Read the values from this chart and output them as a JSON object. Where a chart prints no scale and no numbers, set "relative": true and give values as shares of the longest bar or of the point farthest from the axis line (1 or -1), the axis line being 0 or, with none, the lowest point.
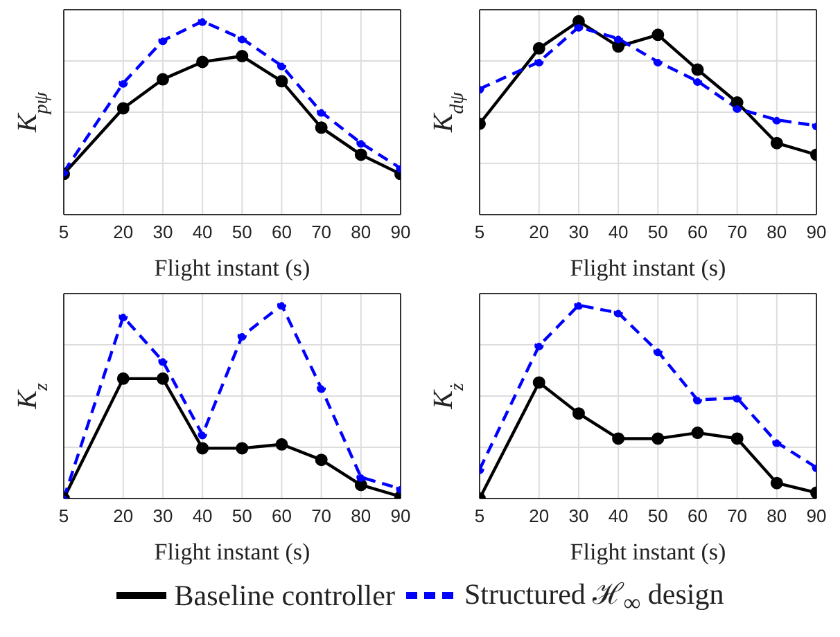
{
  "chart_data": [
    {
      "type": "line",
      "relative": true,
      "xlabel": "Flight instant (s)",
      "ylabel": "K$_{pψ}$",
      "x": [
        5,
        20,
        30,
        40,
        50,
        60,
        70,
        80,
        90
      ],
      "xlim": [
        5,
        90
      ],
      "xticks": [
        5,
        20,
        30,
        40,
        50,
        60,
        70,
        80,
        90
      ],
      "grid": true,
      "marker": "circle",
      "legend": "bottom",
      "series": [
        {
          "name": "Baseline controller",
          "color": "#000000",
          "line_style": "solid",
          "values": [
            0.21,
            0.55,
            0.7,
            0.79,
            0.82,
            0.69,
            0.45,
            0.31,
            0.21
          ]
        },
        {
          "name": "Structured ℋ$_{∞}$ design",
          "color": "#0000ff",
          "line_style": "dashed",
          "values": [
            0.22,
            0.68,
            0.9,
            1,
            0.91,
            0.77,
            0.53,
            0.37,
            0.24
          ]
        }
      ]
    },
    {
      "type": "line",
      "relative": true,
      "xlabel": "Flight instant (s)",
      "ylabel": "K$_{dψ}$",
      "x": [
        5,
        20,
        30,
        40,
        50,
        60,
        70,
        80,
        90
      ],
      "xlim": [
        5,
        90
      ],
      "xticks": [
        5,
        20,
        30,
        40,
        50,
        60,
        70,
        80,
        90
      ],
      "grid": true,
      "marker": "circle",
      "series": [
        {
          "color": "#000000",
          "line_style": "solid",
          "values": [
            0.47,
            0.86,
            1,
            0.87,
            0.93,
            0.75,
            0.58,
            0.37,
            0.31
          ]
        },
        {
          "color": "#0000ff",
          "line_style": "dashed",
          "values": [
            0.65,
            0.79,
            0.97,
            0.91,
            0.79,
            0.69,
            0.55,
            0.49,
            0.46
          ]
        }
      ]
    },
    {
      "type": "line",
      "relative": true,
      "xlabel": "Flight instant (s)",
      "ylabel": "K$_{z}$",
      "x": [
        5,
        20,
        30,
        40,
        50,
        60,
        70,
        80,
        90
      ],
      "xlim": [
        5,
        90
      ],
      "xticks": [
        5,
        20,
        30,
        40,
        50,
        60,
        70,
        80,
        90
      ],
      "grid": true,
      "marker": "circle",
      "series": [
        {
          "color": "#000000",
          "line_style": "solid",
          "values": [
            0,
            0.62,
            0.62,
            0.26,
            0.26,
            0.28,
            0.2,
            0.07,
            0.01
          ]
        },
        {
          "color": "#0000ff",
          "line_style": "dashed",
          "values": [
            0,
            0.94,
            0.71,
            0.33,
            0.84,
            1,
            0.57,
            0.11,
            0.05
          ]
        }
      ]
    },
    {
      "type": "line",
      "relative": true,
      "xlabel": "Flight instant (s)",
      "ylabel": "K$_{ż}$",
      "x": [
        5,
        20,
        30,
        40,
        50,
        60,
        70,
        80,
        90
      ],
      "xlim": [
        5,
        90
      ],
      "xticks": [
        5,
        20,
        30,
        40,
        50,
        60,
        70,
        80,
        90
      ],
      "grid": true,
      "marker": "circle",
      "series": [
        {
          "color": "#000000",
          "line_style": "solid",
          "values": [
            0,
            0.6,
            0.44,
            0.31,
            0.31,
            0.34,
            0.31,
            0.08,
            0.03
          ]
        },
        {
          "color": "#0000ff",
          "line_style": "dashed",
          "values": [
            0.15,
            0.79,
            1,
            0.96,
            0.76,
            0.51,
            0.52,
            0.29,
            0.16
          ]
        }
      ]
    }
  ]
}
